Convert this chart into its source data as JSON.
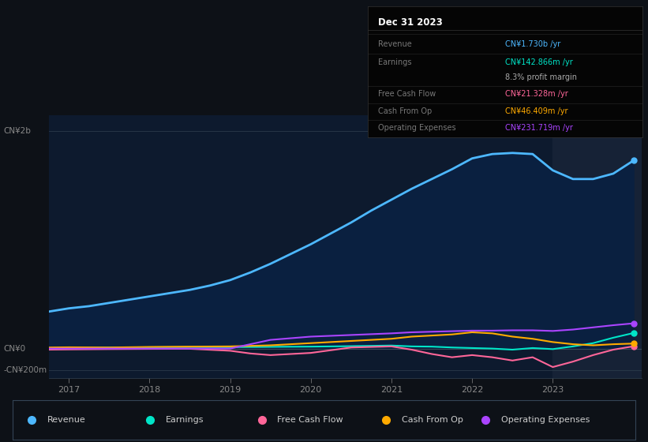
{
  "bg_color": "#0d1117",
  "chart_bg": "#0d1a2e",
  "title": "Dec 31 2023",
  "table": {
    "Revenue": {
      "value": "CN¥1.730b /yr",
      "color": "#4db8ff"
    },
    "Earnings": {
      "value": "CN¥142.866m /yr",
      "color": "#00e5c8"
    },
    "profit_margin": {
      "value": "8.3% profit margin",
      "color": "#aaaaaa"
    },
    "Free Cash Flow": {
      "value": "CN¥21.328m /yr",
      "color": "#ff6699"
    },
    "Cash From Op": {
      "value": "CN¥46.409m /yr",
      "color": "#ffaa00"
    },
    "Operating Expenses": {
      "value": "CN¥231.719m /yr",
      "color": "#aa44ff"
    }
  },
  "ylabel_top": "CN¥2b",
  "ylabel_zero": "CN¥0",
  "ylabel_neg": "-CN¥200m",
  "xlabels": [
    "2017",
    "2018",
    "2019",
    "2020",
    "2021",
    "2022",
    "2023"
  ],
  "legend": [
    {
      "label": "Revenue",
      "color": "#4db8ff"
    },
    {
      "label": "Earnings",
      "color": "#00e5c8"
    },
    {
      "label": "Free Cash Flow",
      "color": "#ff6699"
    },
    {
      "label": "Cash From Op",
      "color": "#ffaa00"
    },
    {
      "label": "Operating Expenses",
      "color": "#aa44ff"
    }
  ],
  "revenue": {
    "x": [
      2016.75,
      2017.0,
      2017.25,
      2017.5,
      2017.75,
      2018.0,
      2018.25,
      2018.5,
      2018.75,
      2019.0,
      2019.25,
      2019.5,
      2019.75,
      2020.0,
      2020.25,
      2020.5,
      2020.75,
      2021.0,
      2021.25,
      2021.5,
      2021.75,
      2022.0,
      2022.25,
      2022.5,
      2022.75,
      2023.0,
      2023.25,
      2023.5,
      2023.75,
      2024.0
    ],
    "y": [
      340,
      370,
      390,
      420,
      450,
      480,
      510,
      540,
      580,
      630,
      700,
      780,
      870,
      960,
      1060,
      1160,
      1270,
      1370,
      1470,
      1560,
      1650,
      1750,
      1790,
      1800,
      1790,
      1640,
      1560,
      1560,
      1610,
      1730
    ]
  },
  "earnings": {
    "x": [
      2016.75,
      2017.0,
      2017.5,
      2018.0,
      2018.5,
      2019.0,
      2019.5,
      2020.0,
      2020.5,
      2021.0,
      2021.25,
      2021.5,
      2021.75,
      2022.0,
      2022.25,
      2022.5,
      2022.75,
      2023.0,
      2023.25,
      2023.5,
      2023.75,
      2024.0
    ],
    "y": [
      5,
      7,
      10,
      12,
      14,
      13,
      16,
      18,
      22,
      28,
      20,
      18,
      10,
      5,
      0,
      -10,
      5,
      -5,
      20,
      50,
      100,
      143
    ]
  },
  "free_cash_flow": {
    "x": [
      2016.75,
      2017.0,
      2017.5,
      2018.0,
      2018.5,
      2019.0,
      2019.25,
      2019.5,
      2020.0,
      2020.5,
      2021.0,
      2021.25,
      2021.5,
      2021.75,
      2022.0,
      2022.25,
      2022.5,
      2022.75,
      2023.0,
      2023.25,
      2023.5,
      2023.75,
      2024.0
    ],
    "y": [
      -10,
      -8,
      -5,
      -3,
      -2,
      -20,
      -45,
      -60,
      -40,
      10,
      20,
      -10,
      -50,
      -80,
      -60,
      -80,
      -110,
      -80,
      -170,
      -120,
      -60,
      -10,
      21
    ]
  },
  "cash_from_op": {
    "x": [
      2016.75,
      2017.0,
      2017.5,
      2018.0,
      2018.5,
      2019.0,
      2019.5,
      2020.0,
      2020.5,
      2021.0,
      2021.25,
      2021.5,
      2021.75,
      2022.0,
      2022.25,
      2022.5,
      2022.75,
      2023.0,
      2023.25,
      2023.5,
      2023.75,
      2024.0
    ],
    "y": [
      10,
      12,
      10,
      15,
      18,
      20,
      30,
      50,
      70,
      90,
      110,
      120,
      130,
      150,
      140,
      110,
      90,
      60,
      40,
      30,
      40,
      46
    ]
  },
  "operating_expenses": {
    "x": [
      2016.75,
      2017.0,
      2017.5,
      2018.0,
      2018.5,
      2019.0,
      2019.25,
      2019.5,
      2020.0,
      2020.5,
      2021.0,
      2021.25,
      2021.5,
      2021.75,
      2022.0,
      2022.25,
      2022.5,
      2022.75,
      2023.0,
      2023.25,
      2023.5,
      2023.75,
      2024.0
    ],
    "y": [
      0,
      0,
      0,
      0,
      0,
      0,
      40,
      80,
      110,
      125,
      140,
      150,
      155,
      160,
      165,
      165,
      168,
      168,
      162,
      175,
      195,
      215,
      232
    ]
  },
  "ylim": [
    -270,
    2150
  ],
  "xlim": [
    2016.75,
    2024.1
  ],
  "highlight_start": 2023.0
}
